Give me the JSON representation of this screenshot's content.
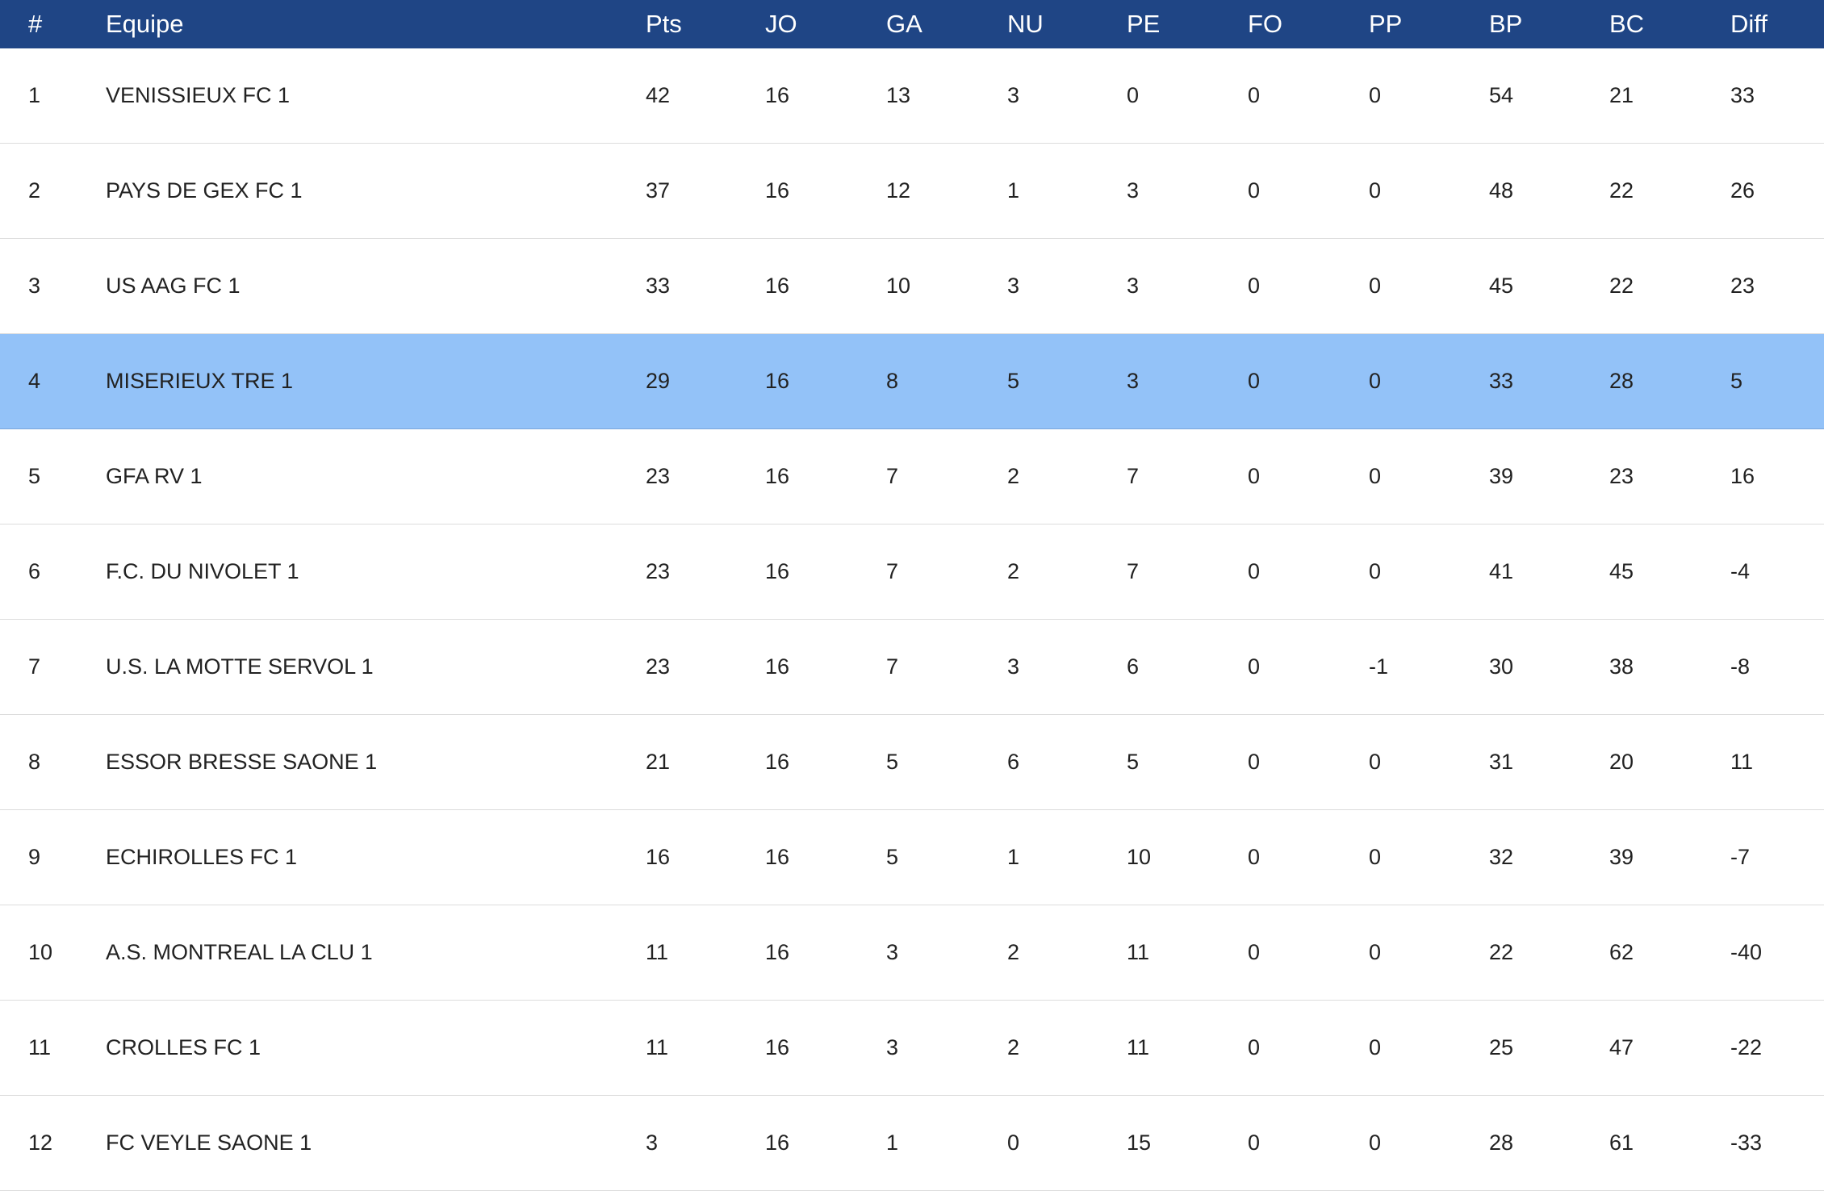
{
  "table": {
    "header": [
      "#",
      "Equipe",
      "Pts",
      "JO",
      "GA",
      "NU",
      "PE",
      "FO",
      "PP",
      "BP",
      "BC",
      "Diff"
    ],
    "rows": [
      [
        1,
        "VENISSIEUX FC 1",
        42,
        16,
        13,
        3,
        0,
        0,
        0,
        54,
        21,
        33
      ],
      [
        2,
        "PAYS DE GEX FC 1",
        37,
        16,
        12,
        1,
        3,
        0,
        0,
        48,
        22,
        26
      ],
      [
        3,
        "US AAG FC 1",
        33,
        16,
        10,
        3,
        3,
        0,
        0,
        45,
        22,
        23
      ],
      [
        4,
        "MISERIEUX TRE 1",
        29,
        16,
        8,
        5,
        3,
        0,
        0,
        33,
        28,
        5
      ],
      [
        5,
        "GFA RV 1",
        23,
        16,
        7,
        2,
        7,
        0,
        0,
        39,
        23,
        16
      ],
      [
        6,
        "F.C. DU NIVOLET 1",
        23,
        16,
        7,
        2,
        7,
        0,
        0,
        41,
        45,
        -4
      ],
      [
        7,
        "U.S. LA MOTTE SERVOL 1",
        23,
        16,
        7,
        3,
        6,
        0,
        -1,
        30,
        38,
        -8
      ],
      [
        8,
        "ESSOR BRESSE SAONE 1",
        21,
        16,
        5,
        6,
        5,
        0,
        0,
        31,
        20,
        11
      ],
      [
        9,
        "ECHIROLLES FC 1",
        16,
        16,
        5,
        1,
        10,
        0,
        0,
        32,
        39,
        -7
      ],
      [
        10,
        "A.S. MONTREAL LA CLU 1",
        11,
        16,
        3,
        2,
        11,
        0,
        0,
        22,
        62,
        -40
      ],
      [
        11,
        "CROLLES FC 1",
        11,
        16,
        3,
        2,
        11,
        0,
        0,
        25,
        47,
        -22
      ],
      [
        12,
        "FC VEYLE SAONE 1",
        3,
        16,
        1,
        0,
        15,
        0,
        0,
        28,
        61,
        -33
      ]
    ]
  }
}
